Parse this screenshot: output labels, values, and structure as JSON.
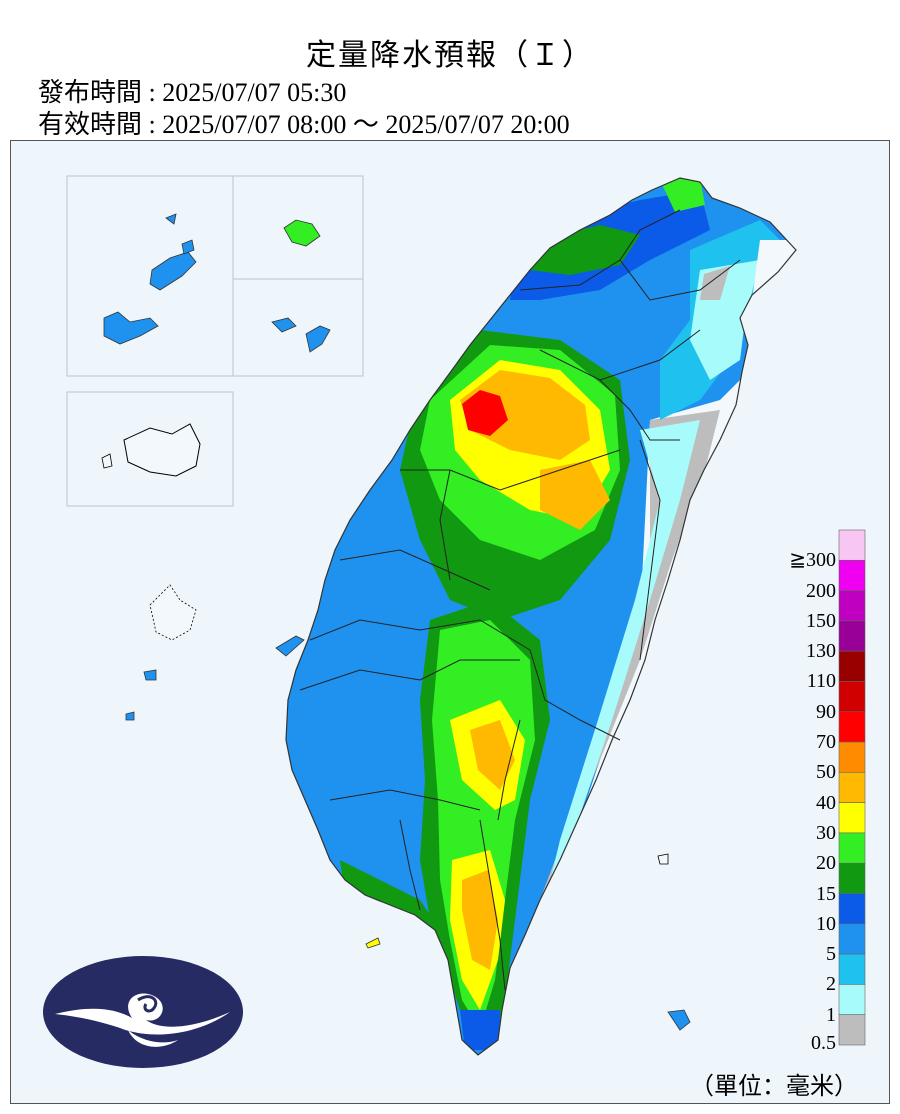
{
  "header": {
    "title": "定量降水預報（Ｉ）",
    "issued": "發布時間 : 2025/07/07 05:30",
    "valid": "有效時間 : 2025/07/07 08:00 ～ 2025/07/07 20:00"
  },
  "legend": {
    "unit": "（單位：毫米）",
    "levels": [
      {
        "label": "≧300",
        "color": "#f7c6f2"
      },
      {
        "label": "200",
        "color": "#f000f0"
      },
      {
        "label": "150",
        "color": "#c000c0"
      },
      {
        "label": "130",
        "color": "#980098"
      },
      {
        "label": "110",
        "color": "#980000"
      },
      {
        "label": "90",
        "color": "#d00000"
      },
      {
        "label": "70",
        "color": "#ff0000"
      },
      {
        "label": "50",
        "color": "#ff8c00"
      },
      {
        "label": "40",
        "color": "#ffb900"
      },
      {
        "label": "30",
        "color": "#ffff00"
      },
      {
        "label": "20",
        "color": "#33ee22"
      },
      {
        "label": "15",
        "color": "#119911"
      },
      {
        "label": "10",
        "color": "#0c5be8"
      },
      {
        "label": "5",
        "color": "#1f92f0"
      },
      {
        "label": "2",
        "color": "#1fc2ee"
      },
      {
        "label": "1",
        "color": "#a8fbfb"
      },
      {
        "label": "0.5",
        "color": "#bdbdbd"
      }
    ]
  },
  "colors": {
    "logo": "#262b63",
    "map_background": "#eef6fb",
    "land_dry": "#f2f8fb",
    "boundary": "#222222"
  },
  "icons": {
    "logo": "cwa-cloud-logo-icon"
  }
}
